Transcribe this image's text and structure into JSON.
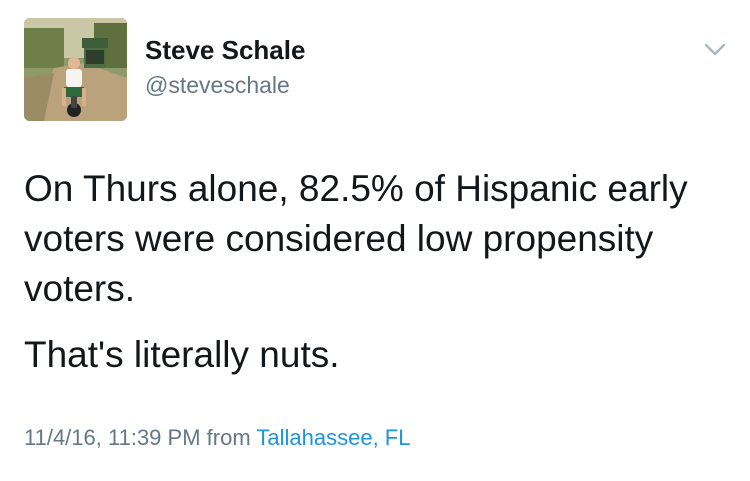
{
  "user": {
    "display_name": "Steve Schale",
    "handle": "@steveschale",
    "avatar_icon": "profile-photo"
  },
  "menu": {
    "icon": "chevron-down-icon"
  },
  "tweet": {
    "paragraphs": [
      "On Thurs alone, 82.5% of Hispanic early voters were considered low propensity voters.",
      "That's literally nuts."
    ]
  },
  "meta": {
    "timestamp": "11/4/16, 11:39 PM",
    "from_label": "from",
    "location": "Tallahassee, FL"
  },
  "colors": {
    "text": "#14171a",
    "secondary": "#657786",
    "link": "#1b95e0"
  }
}
